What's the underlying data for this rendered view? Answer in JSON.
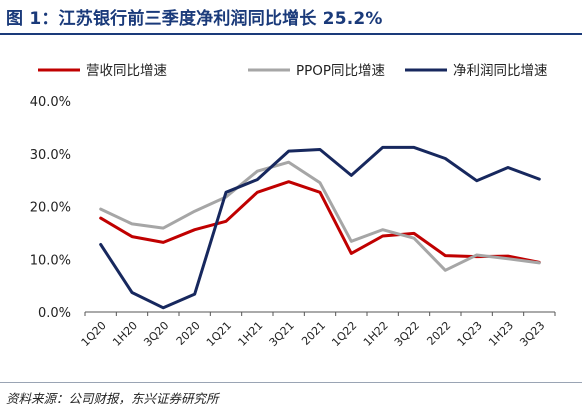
{
  "title": "图 1：江苏银行前三季度净利润同比增长 25.2%",
  "source": "资料来源：公司财报，东兴证券研究所",
  "chart_data": {
    "type": "line",
    "categories": [
      "1Q20",
      "1H20",
      "3Q20",
      "2020",
      "1Q21",
      "1H21",
      "3Q21",
      "2021",
      "1Q22",
      "1H22",
      "3Q22",
      "2022",
      "1Q23",
      "1H23",
      "3Q23"
    ],
    "series": [
      {
        "name": "营收同比增速",
        "color": "#c00000",
        "values": [
          17.8,
          14.3,
          13.2,
          15.6,
          17.2,
          22.7,
          24.7,
          22.7,
          11.1,
          14.4,
          14.9,
          10.7,
          10.5,
          10.6,
          9.4
        ]
      },
      {
        "name": "PPOP同比增速",
        "color": "#a6a6a6",
        "values": [
          19.5,
          16.7,
          15.9,
          19.1,
          21.8,
          26.7,
          28.4,
          24.5,
          13.4,
          15.6,
          14.0,
          7.9,
          10.8,
          10.1,
          9.3
        ]
      },
      {
        "name": "净利润同比增速",
        "color": "#17285e",
        "values": [
          12.8,
          3.7,
          0.8,
          3.4,
          22.7,
          25.1,
          30.5,
          30.8,
          25.9,
          31.2,
          31.2,
          29.1,
          24.9,
          27.4,
          25.2
        ]
      }
    ],
    "ylim": [
      0,
      40
    ],
    "yticks": [
      0,
      10,
      20,
      30,
      40
    ],
    "ytick_labels": [
      "0.0%",
      "10.0%",
      "20.0%",
      "30.0%",
      "40.0%"
    ],
    "legend_position": "top",
    "grid": false
  }
}
